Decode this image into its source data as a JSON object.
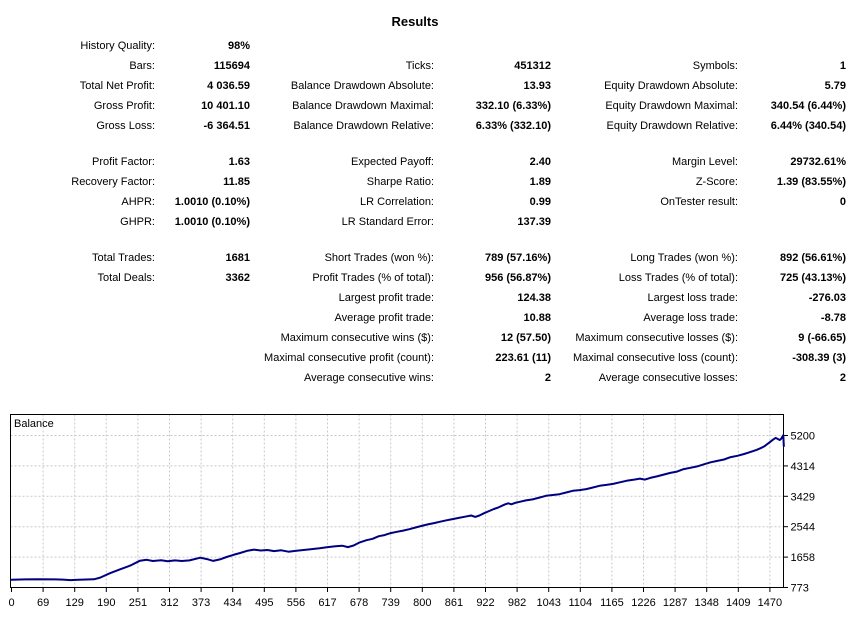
{
  "title": "Results",
  "stats": {
    "rows": [
      [
        "History Quality:",
        "98%",
        "",
        "",
        "",
        ""
      ],
      [
        "Bars:",
        "115694",
        "Ticks:",
        "451312",
        "Symbols:",
        "1"
      ],
      [
        "Total Net Profit:",
        "4 036.59",
        "Balance Drawdown Absolute:",
        "13.93",
        "Equity Drawdown Absolute:",
        "5.79"
      ],
      [
        "Gross Profit:",
        "10 401.10",
        "Balance Drawdown Maximal:",
        "332.10 (6.33%)",
        "Equity Drawdown Maximal:",
        "340.54 (6.44%)"
      ],
      [
        "Gross Loss:",
        "-6 364.51",
        "Balance Drawdown Relative:",
        "6.33% (332.10)",
        "Equity Drawdown Relative:",
        "6.44% (340.54)"
      ],
      [
        "",
        "",
        "",
        "",
        "",
        ""
      ],
      [
        "Profit Factor:",
        "1.63",
        "Expected Payoff:",
        "2.40",
        "Margin Level:",
        "29732.61%"
      ],
      [
        "Recovery Factor:",
        "11.85",
        "Sharpe Ratio:",
        "1.89",
        "Z-Score:",
        "1.39 (83.55%)"
      ],
      [
        "AHPR:",
        "1.0010 (0.10%)",
        "LR Correlation:",
        "0.99",
        "OnTester result:",
        "0"
      ],
      [
        "GHPR:",
        "1.0010 (0.10%)",
        "LR Standard Error:",
        "137.39",
        "",
        ""
      ],
      [
        "",
        "",
        "",
        "",
        "",
        ""
      ],
      [
        "Total Trades:",
        "1681",
        "Short Trades (won %):",
        "789 (57.16%)",
        "Long Trades (won %):",
        "892 (56.61%)"
      ],
      [
        "Total Deals:",
        "3362",
        "Profit Trades (% of total):",
        "956 (56.87%)",
        "Loss Trades (% of total):",
        "725 (43.13%)"
      ],
      [
        "",
        "",
        "Largest profit trade:",
        "124.38",
        "Largest loss trade:",
        "-276.03"
      ],
      [
        "",
        "",
        "Average profit trade:",
        "10.88",
        "Average loss trade:",
        "-8.78"
      ],
      [
        "",
        "",
        "Maximum consecutive wins ($):",
        "12 (57.50)",
        "Maximum consecutive losses ($):",
        "9 (-66.65)"
      ],
      [
        "",
        "",
        "Maximal consecutive profit (count):",
        "223.61 (11)",
        "Maximal consecutive loss (count):",
        "-308.39 (3)"
      ],
      [
        "",
        "",
        "Average consecutive wins:",
        "2",
        "Average consecutive losses:",
        "2"
      ]
    ]
  },
  "chart_data": {
    "type": "line",
    "title": "Balance",
    "series_name": "Balance",
    "line_color": "#000080",
    "grid_color": "#c8c8c8",
    "border_color": "#000000",
    "xlabel": "",
    "ylabel": "",
    "ylim": [
      773,
      5200
    ],
    "x_ticks": [
      "0",
      "69",
      "129",
      "190",
      "251",
      "312",
      "373",
      "434",
      "495",
      "556",
      "617",
      "678",
      "739",
      "800",
      "861",
      "922",
      "982",
      "1043",
      "1104",
      "1165",
      "1226",
      "1287",
      "1348",
      "1409",
      "1470"
    ],
    "y_ticks": [
      5200,
      4314,
      3429,
      2544,
      1658,
      773
    ],
    "x_max": 1497,
    "points": [
      [
        0,
        1000
      ],
      [
        26,
        1010
      ],
      [
        50,
        1016
      ],
      [
        85,
        1008
      ],
      [
        100,
        1002
      ],
      [
        114,
        988
      ],
      [
        130,
        996
      ],
      [
        145,
        1005
      ],
      [
        160,
        1012
      ],
      [
        172,
        1060
      ],
      [
        191,
        1190
      ],
      [
        210,
        1300
      ],
      [
        230,
        1410
      ],
      [
        249,
        1555
      ],
      [
        262,
        1580
      ],
      [
        274,
        1545
      ],
      [
        290,
        1565
      ],
      [
        303,
        1540
      ],
      [
        317,
        1562
      ],
      [
        330,
        1545
      ],
      [
        345,
        1562
      ],
      [
        366,
        1642
      ],
      [
        379,
        1600
      ],
      [
        391,
        1548
      ],
      [
        404,
        1592
      ],
      [
        417,
        1660
      ],
      [
        430,
        1722
      ],
      [
        443,
        1778
      ],
      [
        456,
        1840
      ],
      [
        470,
        1876
      ],
      [
        483,
        1850
      ],
      [
        496,
        1866
      ],
      [
        509,
        1832
      ],
      [
        523,
        1856
      ],
      [
        537,
        1816
      ],
      [
        550,
        1840
      ],
      [
        566,
        1866
      ],
      [
        580,
        1888
      ],
      [
        597,
        1916
      ],
      [
        613,
        1950
      ],
      [
        628,
        1976
      ],
      [
        641,
        1990
      ],
      [
        652,
        1950
      ],
      [
        663,
        1996
      ],
      [
        675,
        2086
      ],
      [
        688,
        2150
      ],
      [
        700,
        2190
      ],
      [
        712,
        2266
      ],
      [
        723,
        2300
      ],
      [
        735,
        2356
      ],
      [
        747,
        2396
      ],
      [
        759,
        2430
      ],
      [
        771,
        2470
      ],
      [
        783,
        2520
      ],
      [
        795,
        2566
      ],
      [
        807,
        2610
      ],
      [
        819,
        2650
      ],
      [
        831,
        2690
      ],
      [
        843,
        2730
      ],
      [
        855,
        2766
      ],
      [
        867,
        2800
      ],
      [
        879,
        2836
      ],
      [
        891,
        2870
      ],
      [
        899,
        2830
      ],
      [
        907,
        2870
      ],
      [
        916,
        2936
      ],
      [
        926,
        3000
      ],
      [
        935,
        3060
      ],
      [
        944,
        3106
      ],
      [
        951,
        3156
      ],
      [
        957,
        3196
      ],
      [
        963,
        3226
      ],
      [
        969,
        3196
      ],
      [
        976,
        3236
      ],
      [
        985,
        3270
      ],
      [
        997,
        3310
      ],
      [
        1010,
        3340
      ],
      [
        1023,
        3390
      ],
      [
        1036,
        3445
      ],
      [
        1049,
        3466
      ],
      [
        1062,
        3490
      ],
      [
        1075,
        3540
      ],
      [
        1088,
        3590
      ],
      [
        1101,
        3610
      ],
      [
        1114,
        3640
      ],
      [
        1127,
        3686
      ],
      [
        1140,
        3735
      ],
      [
        1153,
        3760
      ],
      [
        1166,
        3790
      ],
      [
        1179,
        3836
      ],
      [
        1192,
        3880
      ],
      [
        1205,
        3910
      ],
      [
        1218,
        3946
      ],
      [
        1228,
        3916
      ],
      [
        1238,
        3966
      ],
      [
        1251,
        4010
      ],
      [
        1264,
        4060
      ],
      [
        1277,
        4110
      ],
      [
        1290,
        4150
      ],
      [
        1303,
        4220
      ],
      [
        1316,
        4260
      ],
      [
        1329,
        4300
      ],
      [
        1342,
        4360
      ],
      [
        1355,
        4420
      ],
      [
        1368,
        4460
      ],
      [
        1381,
        4500
      ],
      [
        1394,
        4570
      ],
      [
        1407,
        4610
      ],
      [
        1420,
        4660
      ],
      [
        1428,
        4700
      ],
      [
        1436,
        4740
      ],
      [
        1444,
        4780
      ],
      [
        1452,
        4830
      ],
      [
        1460,
        4890
      ],
      [
        1466,
        4960
      ],
      [
        1472,
        5030
      ],
      [
        1477,
        5090
      ],
      [
        1481,
        5130
      ],
      [
        1485,
        5100
      ],
      [
        1489,
        5070
      ],
      [
        1492,
        5110
      ],
      [
        1494,
        5160
      ],
      [
        1496,
        5210
      ],
      [
        1497,
        4890
      ]
    ]
  }
}
